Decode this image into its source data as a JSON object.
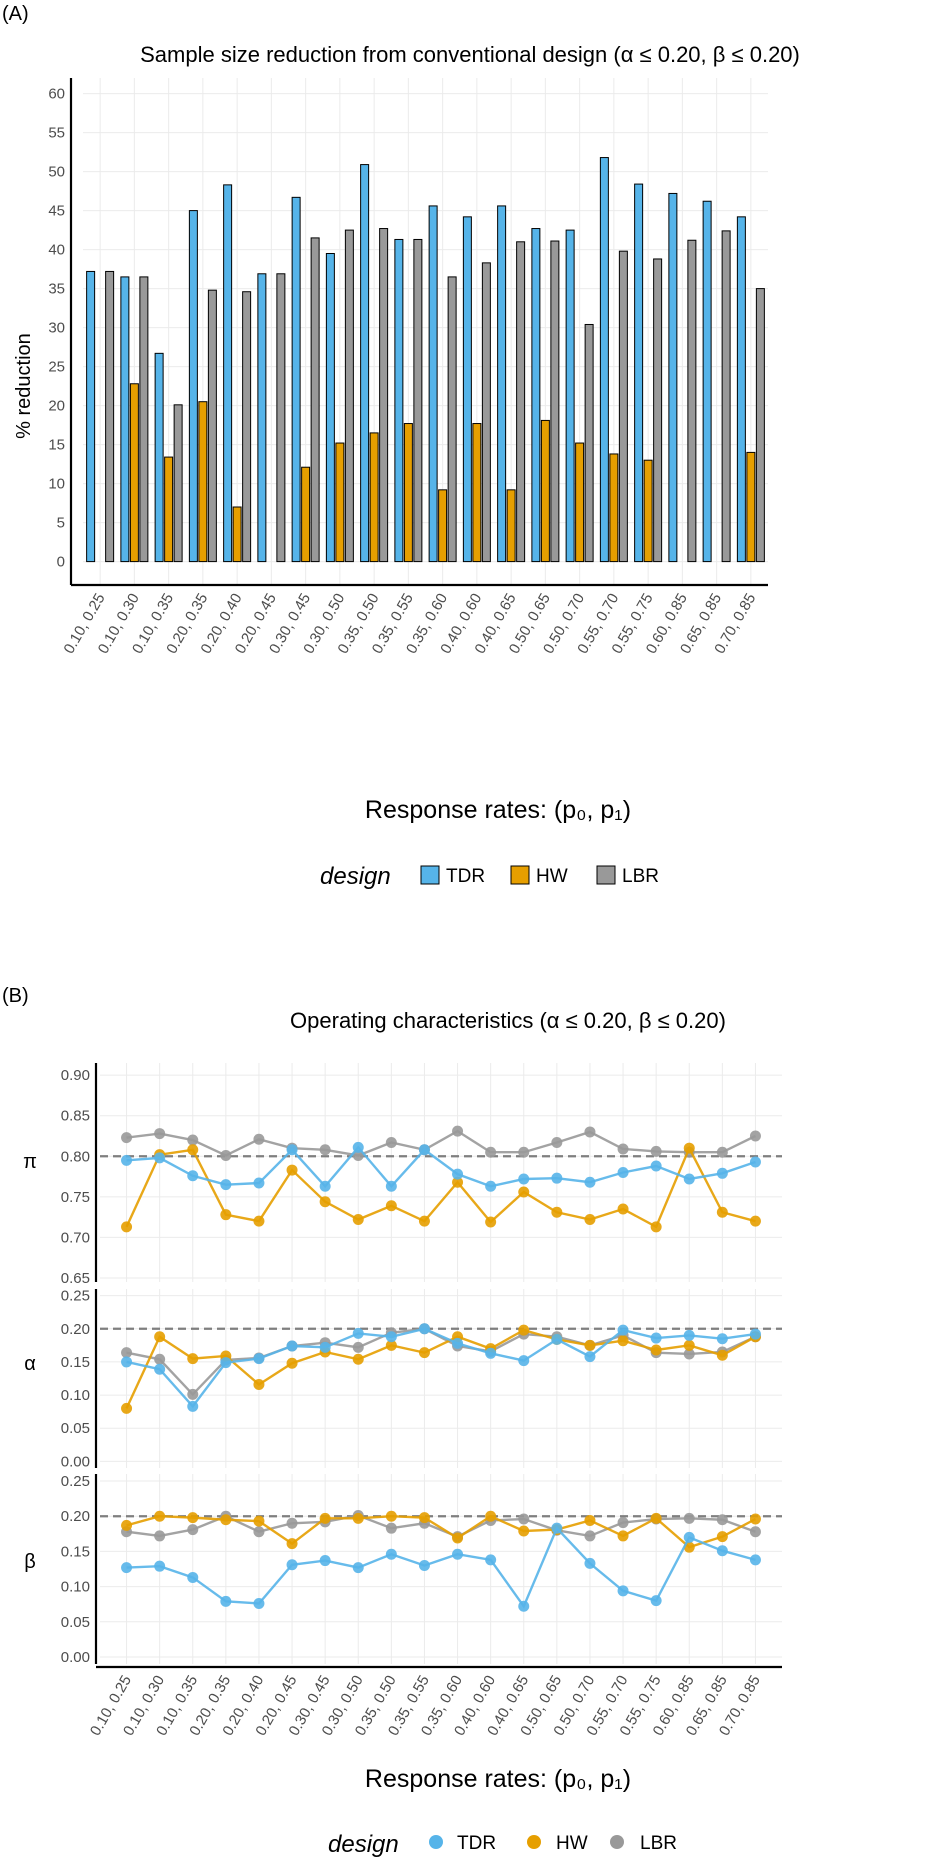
{
  "panelA": {
    "label": "(A)",
    "title": "Sample size reduction from conventional design (α ≤  0.20, β ≤  0.20)",
    "ylabel": "% reduction",
    "xlabel": "Response rates: (p₀, p₁)"
  },
  "panelB": {
    "label": "(B)",
    "title": "Operating characteristics (α ≤ 0.20, β ≤ 0.20)",
    "xlabel": "Response rates: (p₀, p₁)",
    "facets": [
      "π",
      "α",
      "β"
    ]
  },
  "legendA": {
    "title": "design",
    "items": [
      "TDR",
      "HW",
      "LBR"
    ]
  },
  "legendB": {
    "title": "design",
    "items": [
      "TDR",
      "HW",
      "LBR"
    ]
  },
  "colors": {
    "TDR": "#56B4E9",
    "HW": "#E69F00",
    "LBR": "#999999",
    "reference": "#7f7f7f"
  },
  "chart_data": [
    {
      "type": "bar",
      "title": "Sample size reduction from conventional design (α ≤  0.20, β ≤  0.20)",
      "xlabel": "Response rates: (p₀, p₁)",
      "ylabel": "% reduction",
      "ylim": [
        -3,
        62
      ],
      "yticks": [
        0,
        5,
        10,
        15,
        20,
        25,
        30,
        35,
        40,
        45,
        50,
        55,
        60
      ],
      "categories": [
        "0.10, 0.25",
        "0.10, 0.30",
        "0.10, 0.35",
        "0.20, 0.35",
        "0.20, 0.40",
        "0.20, 0.45",
        "0.30, 0.45",
        "0.30, 0.50",
        "0.35, 0.50",
        "0.35, 0.55",
        "0.35, 0.60",
        "0.40, 0.60",
        "0.40, 0.65",
        "0.50, 0.65",
        "0.50, 0.70",
        "0.55, 0.70",
        "0.55, 0.75",
        "0.60, 0.85",
        "0.65, 0.85",
        "0.70, 0.85"
      ],
      "series": [
        {
          "name": "TDR",
          "values": [
            37.2,
            36.5,
            26.7,
            45.0,
            48.3,
            36.9,
            46.7,
            39.5,
            50.9,
            41.3,
            45.6,
            44.2,
            45.6,
            42.7,
            42.5,
            51.8,
            48.4,
            47.2,
            46.2,
            44.2
          ]
        },
        {
          "name": "HW",
          "values": [
            0,
            22.8,
            13.4,
            20.5,
            7.0,
            0,
            12.1,
            15.2,
            16.5,
            17.7,
            9.2,
            17.7,
            9.2,
            18.1,
            15.2,
            13.8,
            13.0,
            0,
            0,
            14.0
          ]
        },
        {
          "name": "LBR",
          "values": [
            37.2,
            36.5,
            20.1,
            34.8,
            34.6,
            36.9,
            41.5,
            42.5,
            42.7,
            41.3,
            36.5,
            38.3,
            41.0,
            41.1,
            30.4,
            39.8,
            38.8,
            41.2,
            42.4,
            35.0
          ]
        }
      ],
      "legend": "bottom",
      "grid": true
    },
    {
      "type": "line",
      "title": "Operating characteristics (α ≤ 0.20, β ≤ 0.20)",
      "xlabel": "Response rates: (p₀, p₁)",
      "categories": [
        "0.10, 0.25",
        "0.10, 0.30",
        "0.10, 0.35",
        "0.20, 0.35",
        "0.20, 0.40",
        "0.20, 0.45",
        "0.30, 0.45",
        "0.30, 0.50",
        "0.35, 0.50",
        "0.35, 0.55",
        "0.35, 0.60",
        "0.40, 0.60",
        "0.40, 0.65",
        "0.50, 0.65",
        "0.50, 0.70",
        "0.55, 0.70",
        "0.55, 0.75",
        "0.60, 0.85",
        "0.65, 0.85",
        "0.70, 0.85"
      ],
      "legend": "bottom",
      "grid": true,
      "facets": [
        {
          "ylabel": "π",
          "ylim": [
            0.645,
            0.915
          ],
          "yticks": [
            0.65,
            0.7,
            0.75,
            0.8,
            0.85,
            0.9
          ],
          "reference_line": 0.8,
          "series": [
            {
              "name": "TDR",
              "values": [
                0.795,
                0.798,
                0.776,
                0.765,
                0.767,
                0.808,
                0.763,
                0.811,
                0.763,
                0.808,
                0.778,
                0.763,
                0.772,
                0.773,
                0.768,
                0.78,
                0.788,
                0.772,
                0.779,
                0.793
              ]
            },
            {
              "name": "HW",
              "values": [
                0.713,
                0.802,
                0.808,
                0.728,
                0.72,
                0.783,
                0.744,
                0.722,
                0.739,
                0.72,
                0.768,
                0.719,
                0.756,
                0.731,
                0.722,
                0.735,
                0.713,
                0.81,
                0.731,
                0.72
              ]
            },
            {
              "name": "LBR",
              "values": [
                0.823,
                0.828,
                0.82,
                0.801,
                0.821,
                0.81,
                0.808,
                0.801,
                0.817,
                0.808,
                0.831,
                0.805,
                0.805,
                0.817,
                0.83,
                0.809,
                0.806,
                0.805,
                0.805,
                0.825
              ]
            }
          ]
        },
        {
          "ylabel": "α",
          "ylim": [
            -0.01,
            0.26
          ],
          "yticks": [
            0.0,
            0.05,
            0.1,
            0.15,
            0.2,
            0.25
          ],
          "reference_line": 0.2,
          "series": [
            {
              "name": "TDR",
              "values": [
                0.15,
                0.139,
                0.083,
                0.149,
                0.155,
                0.174,
                0.172,
                0.193,
                0.188,
                0.2,
                0.178,
                0.163,
                0.152,
                0.184,
                0.158,
                0.198,
                0.186,
                0.19,
                0.185,
                0.192
              ]
            },
            {
              "name": "HW",
              "values": [
                0.08,
                0.188,
                0.155,
                0.159,
                0.116,
                0.148,
                0.165,
                0.154,
                0.175,
                0.164,
                0.188,
                0.17,
                0.198,
                0.184,
                0.175,
                0.182,
                0.168,
                0.175,
                0.16,
                0.188
              ]
            },
            {
              "name": "LBR",
              "values": [
                0.164,
                0.154,
                0.101,
                0.153,
                0.156,
                0.174,
                0.179,
                0.172,
                0.194,
                0.2,
                0.174,
                0.166,
                0.192,
                0.188,
                0.175,
                0.19,
                0.164,
                0.162,
                0.165,
                0.188
              ]
            }
          ]
        },
        {
          "ylabel": "β",
          "ylim": [
            -0.01,
            0.26
          ],
          "yticks": [
            0.0,
            0.05,
            0.1,
            0.15,
            0.2,
            0.25
          ],
          "reference_line": 0.2,
          "series": [
            {
              "name": "TDR",
              "values": [
                0.127,
                0.129,
                0.113,
                0.079,
                0.076,
                0.131,
                0.137,
                0.127,
                0.146,
                0.13,
                0.146,
                0.138,
                0.072,
                0.183,
                0.133,
                0.094,
                0.08,
                0.17,
                0.151,
                0.138
              ]
            },
            {
              "name": "HW",
              "values": [
                0.187,
                0.2,
                0.198,
                0.195,
                0.193,
                0.161,
                0.197,
                0.197,
                0.2,
                0.198,
                0.169,
                0.2,
                0.179,
                0.181,
                0.194,
                0.172,
                0.197,
                0.156,
                0.171,
                0.196
              ]
            },
            {
              "name": "LBR",
              "values": [
                0.178,
                0.172,
                0.181,
                0.2,
                0.178,
                0.19,
                0.192,
                0.201,
                0.183,
                0.19,
                0.171,
                0.194,
                0.196,
                0.18,
                0.172,
                0.191,
                0.196,
                0.197,
                0.195,
                0.178
              ]
            }
          ]
        }
      ]
    }
  ]
}
